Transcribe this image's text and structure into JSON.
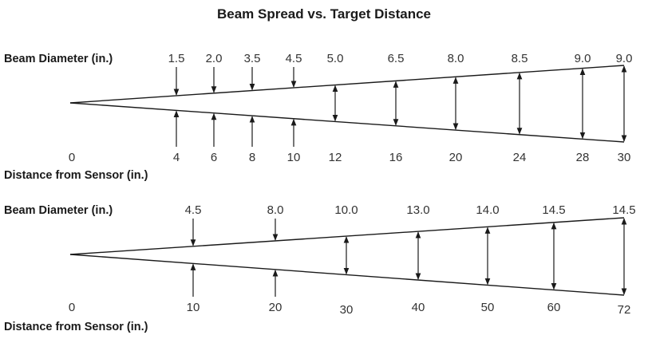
{
  "title": "Beam Spread vs. Target Distance",
  "colors": {
    "ink": "#1a1a1a",
    "text": "#333333"
  },
  "charts": [
    {
      "diameter_label": "Beam Diameter (in.)",
      "distance_label": "Distance from Sensor (in.)",
      "origin_label": "0",
      "points": [
        {
          "distance": "4",
          "diameter": "1.5"
        },
        {
          "distance": "6",
          "diameter": "2.0"
        },
        {
          "distance": "8",
          "diameter": "3.5"
        },
        {
          "distance": "10",
          "diameter": "4.5"
        },
        {
          "distance": "12",
          "diameter": "5.0"
        },
        {
          "distance": "16",
          "diameter": "6.5"
        },
        {
          "distance": "20",
          "diameter": "8.0"
        },
        {
          "distance": "24",
          "diameter": "8.5"
        },
        {
          "distance": "28",
          "diameter": "9.0"
        },
        {
          "distance": "30",
          "diameter": "9.0"
        }
      ]
    },
    {
      "diameter_label": "Beam Diameter (in.)",
      "distance_label": "Distance from Sensor (in.)",
      "origin_label": "0",
      "points": [
        {
          "distance": "10",
          "diameter": "4.5"
        },
        {
          "distance": "20",
          "diameter": "8.0"
        },
        {
          "distance": "30",
          "diameter": "10.0"
        },
        {
          "distance": "40",
          "diameter": "13.0"
        },
        {
          "distance": "50",
          "diameter": "14.0"
        },
        {
          "distance": "60",
          "diameter": "14.5"
        },
        {
          "distance": "72",
          "diameter": "14.5"
        }
      ]
    }
  ]
}
